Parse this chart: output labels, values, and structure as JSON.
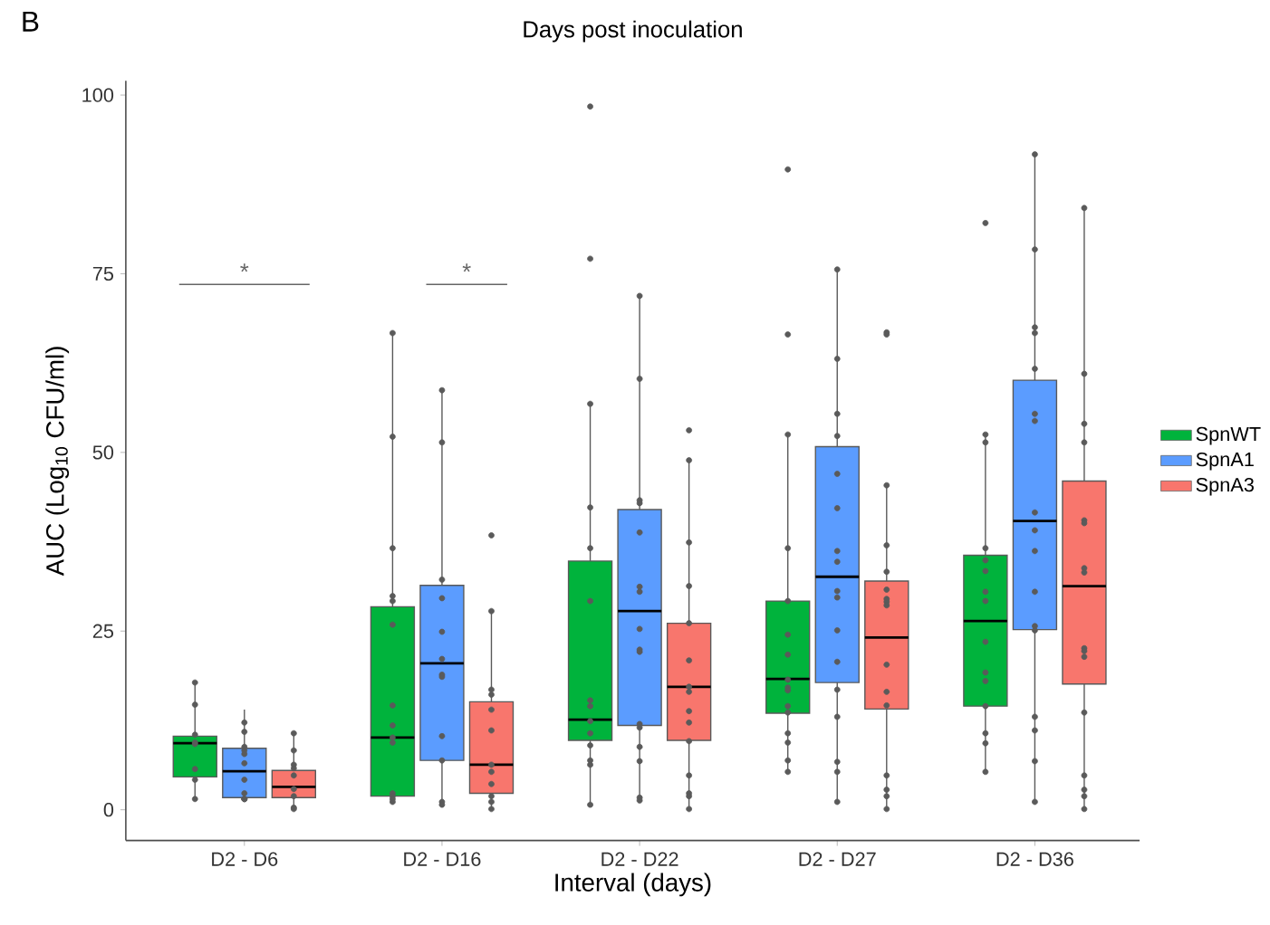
{
  "chart_data": {
    "type": "box",
    "title": "Days post inoculation",
    "xlabel": "Interval (days)",
    "ylabel": "AUC (Log$_{10}$ CFU/ml)",
    "annotations": [
      "B",
      "*",
      "*"
    ],
    "categories": [
      "D2 - D6",
      "D2 - D16",
      "D2 - D22",
      "D2 - D27",
      "D2 - D36"
    ],
    "ylim": [
      -4.3,
      102
    ],
    "yticks": [
      0,
      25,
      50,
      75,
      100
    ],
    "grid": false,
    "legend": "right",
    "marker": "circle",
    "series": [
      {
        "name": "SpnWT",
        "color": "#00b33c",
        "boxes": [
          {
            "low": 1.5,
            "q1": 4.6,
            "median": 9.3,
            "q3": 10.3,
            "high": 17.6
          },
          {
            "low": 1.1,
            "q1": 1.9,
            "median": 10.1,
            "q3": 28.4,
            "high": 66.8
          },
          {
            "low": 0.9,
            "q1": 9.7,
            "median": 12.6,
            "q3": 34.8,
            "high": 56.6
          },
          {
            "low": 5.3,
            "q1": 13.5,
            "median": 18.3,
            "q3": 29.2,
            "high": 52.5
          },
          {
            "low": 5.3,
            "q1": 14.5,
            "median": 26.4,
            "q3": 35.6,
            "high": 52.4
          }
        ]
      },
      {
        "name": "SpnA1",
        "color": "#5b9cff",
        "boxes": [
          {
            "low": 1.5,
            "q1": 1.7,
            "median": 5.4,
            "q3": 8.6,
            "high": 14.0
          },
          {
            "low": 1.1,
            "q1": 6.9,
            "median": 20.5,
            "q3": 31.4,
            "high": 58.6
          },
          {
            "low": 1.1,
            "q1": 11.8,
            "median": 27.8,
            "q3": 42.0,
            "high": 71.9
          },
          {
            "low": 1.1,
            "q1": 17.8,
            "median": 32.6,
            "q3": 50.8,
            "high": 75.4
          },
          {
            "low": 1.1,
            "q1": 25.2,
            "median": 40.4,
            "q3": 60.1,
            "high": 91.7
          }
        ]
      },
      {
        "name": "SpnA3",
        "color": "#f8766d",
        "boxes": [
          {
            "low": 0.1,
            "q1": 1.7,
            "median": 3.2,
            "q3": 5.5,
            "high": 10.9
          },
          {
            "low": 0.1,
            "q1": 2.3,
            "median": 6.3,
            "q3": 15.1,
            "high": 27.6
          },
          {
            "low": 0.3,
            "q1": 9.7,
            "median": 17.2,
            "q3": 26.1,
            "high": 49.0
          },
          {
            "low": 0.1,
            "q1": 14.1,
            "median": 24.1,
            "q3": 32.0,
            "high": 45.5
          },
          {
            "low": 0.1,
            "q1": 17.6,
            "median": 31.3,
            "q3": 46.0,
            "high": 84.2
          }
        ]
      },
      {
        "type": "scatter",
        "color": "#5a5a5a",
        "x": [
          "D2 - D6",
          "D2 - D6",
          "D2 - D6",
          "D2 - D6",
          "D2 - D6",
          "D2 - D6",
          "D2 - D6",
          "D2 - D6",
          "D2 - D16",
          "D2 - D16",
          "D2 - D16",
          "D2 - D16",
          "D2 - D16",
          "D2 - D16",
          "D2 - D16",
          "D2 - D16",
          "D2 - D16",
          "D2 - D16",
          "D2 - D16",
          "D2 - D16",
          "D2 - D16",
          "D2 - D16",
          "D2 - D22",
          "D2 - D22",
          "D2 - D22",
          "D2 - D22",
          "D2 - D22",
          "D2 - D22",
          "D2 - D22",
          "D2 - D22",
          "D2 - D22",
          "D2 - D22",
          "D2 - D22",
          "D2 - D22",
          "D2 - D22",
          "D2 - D22",
          "D2 - D27",
          "D2 - D27",
          "D2 - D27",
          "D2 - D27",
          "D2 - D27",
          "D2 - D27",
          "D2 - D27",
          "D2 - D27",
          "D2 - D27",
          "D2 - D27",
          "D2 - D27",
          "D2 - D27",
          "D2 - D27",
          "D2 - D27",
          "D2 - D27",
          "D2 - D27",
          "D2 - D36",
          "D2 - D36",
          "D2 - D36",
          "D2 - D36",
          "D2 - D36",
          "D2 - D36",
          "D2 - D36",
          "D2 - D36",
          "D2 - D36",
          "D2 - D36",
          "D2 - D36",
          "D2 - D36",
          "D2 - D36",
          "D2 - D36",
          "D2 - D36"
        ],
        "values": [
          17.8,
          14.7,
          9.4,
          9.2,
          10.5,
          5.7,
          4.2,
          1.5,
          66.7,
          52.2,
          36.6,
          29.9,
          29.2,
          25.9,
          14.6,
          11.8,
          10.1,
          9.4,
          2.3,
          1.9,
          1.5,
          1.1,
          98.4,
          77.1,
          56.8,
          42.3,
          36.6,
          29.2,
          15.3,
          14.5,
          12.4,
          10.7,
          9.0,
          6.9,
          6.3,
          0.7,
          89.6,
          66.5,
          52.5,
          36.6,
          29.2,
          24.5,
          21.7,
          18.2,
          17.1,
          16.7,
          14.5,
          13.6,
          10.7,
          9.4,
          6.9,
          5.3,
          82.1,
          52.5,
          51.4,
          36.6,
          34.9,
          33.4,
          30.5,
          29.2,
          23.5,
          19.2,
          18.0,
          14.5,
          10.7,
          9.3,
          5.3
        ]
      },
      {
        "type": "scatter",
        "color": "#5a5a5a",
        "x": [
          "D2 - D6",
          "D2 - D6",
          "D2 - D6",
          "D2 - D6",
          "D2 - D6",
          "D2 - D6",
          "D2 - D6",
          "D2 - D6",
          "D2 - D6",
          "D2 - D6",
          "D2 - D6",
          "D2 - D16",
          "D2 - D16",
          "D2 - D16",
          "D2 - D16",
          "D2 - D16",
          "D2 - D16",
          "D2 - D16",
          "D2 - D16",
          "D2 - D16",
          "D2 - D16",
          "D2 - D16",
          "D2 - D16",
          "D2 - D22",
          "D2 - D22",
          "D2 - D22",
          "D2 - D22",
          "D2 - D22",
          "D2 - D22",
          "D2 - D22",
          "D2 - D22",
          "D2 - D22",
          "D2 - D22",
          "D2 - D22",
          "D2 - D22",
          "D2 - D22",
          "D2 - D22",
          "D2 - D22",
          "D2 - D22",
          "D2 - D27",
          "D2 - D27",
          "D2 - D27",
          "D2 - D27",
          "D2 - D27",
          "D2 - D27",
          "D2 - D27",
          "D2 - D27",
          "D2 - D27",
          "D2 - D27",
          "D2 - D27",
          "D2 - D27",
          "D2 - D27",
          "D2 - D27",
          "D2 - D27",
          "D2 - D27",
          "D2 - D27",
          "D2 - D36",
          "D2 - D36",
          "D2 - D36",
          "D2 - D36",
          "D2 - D36",
          "D2 - D36",
          "D2 - D36",
          "D2 - D36",
          "D2 - D36",
          "D2 - D36",
          "D2 - D36",
          "D2 - D36",
          "D2 - D36",
          "D2 - D36",
          "D2 - D36",
          "D2 - D36",
          "D2 - D36"
        ],
        "values": [
          12.2,
          10.9,
          8.8,
          8.3,
          7.8,
          6.5,
          4.2,
          2.3,
          1.5,
          1.5,
          1.5,
          58.7,
          51.4,
          32.2,
          29.6,
          24.9,
          21.1,
          18.9,
          18.6,
          10.3,
          6.9,
          1.1,
          0.7,
          71.9,
          60.3,
          43.3,
          42.9,
          38.8,
          31.2,
          30.5,
          25.3,
          22.4,
          22.1,
          12.0,
          11.5,
          8.8,
          6.8,
          1.7,
          1.3,
          75.6,
          63.1,
          55.4,
          52.3,
          47.0,
          42.2,
          36.2,
          34.7,
          30.6,
          29.7,
          25.1,
          20.7,
          16.8,
          13.0,
          6.7,
          5.3,
          1.1,
          91.7,
          78.4,
          67.5,
          66.7,
          61.7,
          55.4,
          54.4,
          41.6,
          39.1,
          36.2,
          30.5,
          25.7,
          25.1,
          13.0,
          11.1,
          6.8,
          1.1
        ]
      },
      {
        "type": "scatter",
        "color": "#5a5a5a",
        "x": [
          "D2 - D6",
          "D2 - D6",
          "D2 - D6",
          "D2 - D6",
          "D2 - D6",
          "D2 - D6",
          "D2 - D6",
          "D2 - D6",
          "D2 - D6",
          "D2 - D16",
          "D2 - D16",
          "D2 - D16",
          "D2 - D16",
          "D2 - D16",
          "D2 - D16",
          "D2 - D16",
          "D2 - D16",
          "D2 - D16",
          "D2 - D16",
          "D2 - D16",
          "D2 - D16",
          "D2 - D22",
          "D2 - D22",
          "D2 - D22",
          "D2 - D22",
          "D2 - D22",
          "D2 - D22",
          "D2 - D22",
          "D2 - D22",
          "D2 - D22",
          "D2 - D22",
          "D2 - D22",
          "D2 - D22",
          "D2 - D22",
          "D2 - D22",
          "D2 - D22",
          "D2 - D27",
          "D2 - D27",
          "D2 - D27",
          "D2 - D27",
          "D2 - D27",
          "D2 - D27",
          "D2 - D27",
          "D2 - D27",
          "D2 - D27",
          "D2 - D27",
          "D2 - D27",
          "D2 - D27",
          "D2 - D27",
          "D2 - D27",
          "D2 - D27",
          "D2 - D27",
          "D2 - D36",
          "D2 - D36",
          "D2 - D36",
          "D2 - D36",
          "D2 - D36",
          "D2 - D36",
          "D2 - D36",
          "D2 - D36",
          "D2 - D36",
          "D2 - D36",
          "D2 - D36",
          "D2 - D36",
          "D2 - D36",
          "D2 - D36",
          "D2 - D36",
          "D2 - D36"
        ],
        "values": [
          10.7,
          8.3,
          6.3,
          5.8,
          4.8,
          2.9,
          1.9,
          0.3,
          0.1,
          38.4,
          27.8,
          16.8,
          16.1,
          14.0,
          11.1,
          6.3,
          5.3,
          3.6,
          1.9,
          1.1,
          0.1,
          53.1,
          48.9,
          37.4,
          31.3,
          26.1,
          20.9,
          17.2,
          16.5,
          13.8,
          12.2,
          9.6,
          4.8,
          2.3,
          1.9,
          0.1,
          66.8,
          66.5,
          45.4,
          37.0,
          33.3,
          30.8,
          29.5,
          29.1,
          28.6,
          20.3,
          16.5,
          14.6,
          4.8,
          2.8,
          1.9,
          0.1,
          84.2,
          61.0,
          54.0,
          51.4,
          40.5,
          40.1,
          33.8,
          33.2,
          22.6,
          22.2,
          21.4,
          13.6,
          4.8,
          2.8,
          1.9,
          0.1
        ]
      }
    ]
  }
}
